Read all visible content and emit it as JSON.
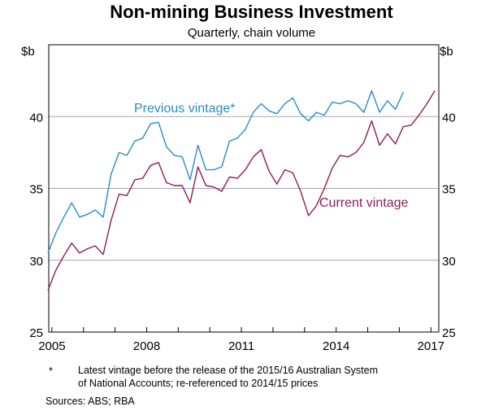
{
  "chart_data": {
    "type": "line",
    "title": "Non-mining Business Investment",
    "subtitle": "Quarterly, chain volume",
    "ylabel_left": "$b",
    "ylabel_right": "$b",
    "ylim": [
      25,
      45
    ],
    "yticks": [
      "25",
      "30",
      "35",
      "40"
    ],
    "xlim": [
      2004.9,
      2017.25
    ],
    "xticks": [
      {
        "x": 2005,
        "label": "2005"
      },
      {
        "x": 2008,
        "label": "2008"
      },
      {
        "x": 2011,
        "label": "2011"
      },
      {
        "x": 2014,
        "label": "2014"
      },
      {
        "x": 2017,
        "label": "2017"
      }
    ],
    "grid": true,
    "series": [
      {
        "name": "Previous vintage*",
        "color": "#2a8ccc",
        "x_start": 2004.875,
        "step": 0.25,
        "values": [
          30.5,
          31.9,
          33.0,
          34.0,
          33.0,
          33.2,
          33.5,
          33.0,
          36.0,
          37.5,
          37.3,
          38.3,
          38.5,
          39.5,
          39.6,
          37.9,
          37.3,
          37.2,
          35.6,
          38.0,
          36.3,
          36.3,
          36.5,
          38.3,
          38.5,
          39.1,
          40.3,
          40.9,
          40.4,
          40.2,
          40.9,
          41.3,
          40.2,
          39.7,
          40.3,
          40.1,
          41.0,
          40.9,
          41.1,
          40.9,
          40.3,
          41.8,
          40.3,
          41.1,
          40.5,
          41.7
        ]
      },
      {
        "name": "Current vintage",
        "color": "#8c1d5a",
        "x_start": 2004.875,
        "step": 0.25,
        "values": [
          27.9,
          29.3,
          30.3,
          31.2,
          30.5,
          30.8,
          31.0,
          30.4,
          32.8,
          34.6,
          34.5,
          35.6,
          35.7,
          36.6,
          36.8,
          35.4,
          35.2,
          35.2,
          34.0,
          36.5,
          35.2,
          35.1,
          34.8,
          35.8,
          35.7,
          36.3,
          37.2,
          37.7,
          36.2,
          35.3,
          36.3,
          36.1,
          34.8,
          33.1,
          33.8,
          35.0,
          36.4,
          37.3,
          37.2,
          37.5,
          38.2,
          39.7,
          38.0,
          38.8,
          38.1,
          39.3,
          39.4,
          40.1,
          40.9,
          41.8
        ]
      }
    ],
    "annotations": [
      {
        "text": "Previous vintage*",
        "color": "#2a8ccc"
      },
      {
        "text": "Current vintage",
        "color": "#8c1d5a"
      }
    ]
  },
  "footnote_marker": "*",
  "footnote_line1": "Latest vintage before the release of the 2015/16 Australian System",
  "footnote_line2": "of National Accounts; re-referenced to 2014/15 prices",
  "sources": "Sources:   ABS; RBA"
}
